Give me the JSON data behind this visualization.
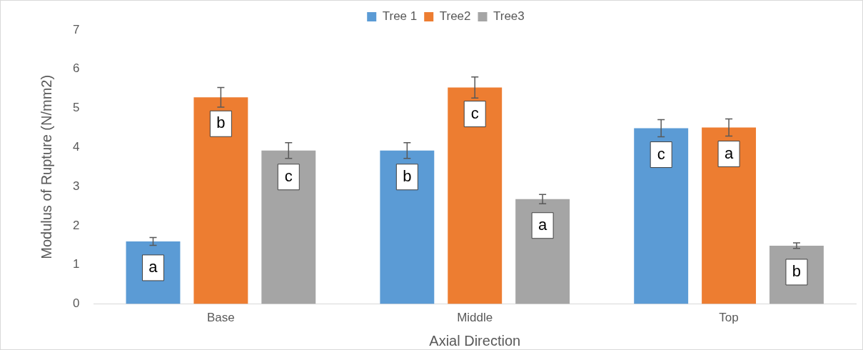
{
  "chart_data": {
    "type": "bar",
    "xlabel": "Axial Direction",
    "ylabel": "Modulus of Rupture (N/mm2)",
    "categories": [
      "Base",
      "Middle",
      "Top"
    ],
    "series": [
      {
        "name": "Tree 1",
        "color": "#5b9bd5",
        "values": [
          1.6,
          3.92,
          4.49
        ],
        "errors": [
          0.1,
          0.2,
          0.22
        ],
        "value_labels": [
          "a",
          "b",
          "c"
        ]
      },
      {
        "name": "Tree2",
        "color": "#ed7d31",
        "values": [
          5.28,
          5.53,
          4.51
        ],
        "errors": [
          0.25,
          0.27,
          0.22
        ],
        "value_labels": [
          "b",
          "c",
          "a"
        ]
      },
      {
        "name": "Tree3",
        "color": "#a5a5a5",
        "values": [
          3.92,
          2.68,
          1.49
        ],
        "errors": [
          0.2,
          0.12,
          0.07
        ],
        "value_labels": [
          "c",
          "a",
          "b"
        ]
      }
    ],
    "ylim": [
      0,
      7
    ],
    "yticks": [
      0,
      1,
      2,
      3,
      4,
      5,
      6,
      7
    ],
    "grid": false,
    "legend": "top"
  }
}
